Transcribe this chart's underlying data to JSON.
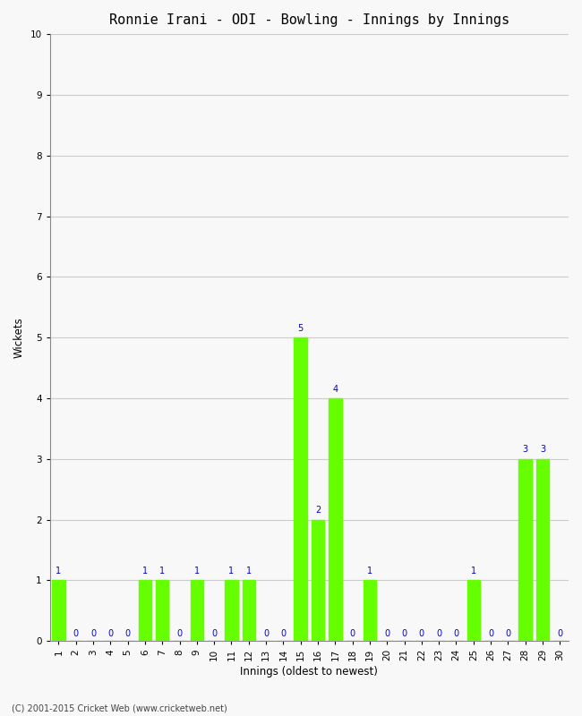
{
  "title": "Ronnie Irani - ODI - Bowling - Innings by Innings",
  "xlabel": "Innings (oldest to newest)",
  "ylabel": "Wickets",
  "innings": [
    1,
    2,
    3,
    4,
    5,
    6,
    7,
    8,
    9,
    10,
    11,
    12,
    13,
    14,
    15,
    16,
    17,
    18,
    19,
    20,
    21,
    22,
    23,
    24,
    25,
    26,
    27,
    28,
    29,
    30
  ],
  "wickets": [
    1,
    0,
    0,
    0,
    0,
    1,
    1,
    0,
    1,
    0,
    1,
    1,
    0,
    0,
    5,
    2,
    4,
    0,
    1,
    0,
    0,
    0,
    0,
    0,
    1,
    0,
    0,
    3,
    3,
    0
  ],
  "bar_color": "#66ff00",
  "label_color": "#0000cc",
  "background_color": "#f8f8f8",
  "grid_color": "#cccccc",
  "ylim": [
    0,
    10
  ],
  "yticks": [
    0,
    1,
    2,
    3,
    4,
    5,
    6,
    7,
    8,
    9,
    10
  ],
  "title_fontsize": 11,
  "axis_label_fontsize": 8.5,
  "tick_label_fontsize": 7.5,
  "annotation_fontsize": 7,
  "footer": "(C) 2001-2015 Cricket Web (www.cricketweb.net)"
}
